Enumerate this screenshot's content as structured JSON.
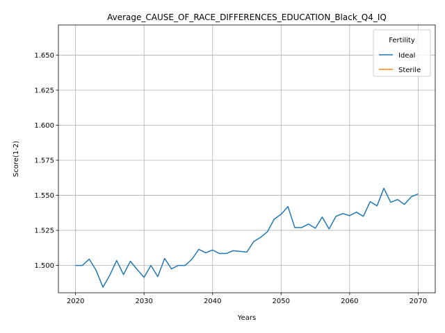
{
  "chart_data": {
    "type": "line",
    "title": "Average_CAUSE_OF_RACE_DIFFERENCES_EDUCATION_Black_Q4_IQ",
    "xlabel": "Years",
    "ylabel": "Score(1-2)",
    "xlim": [
      2017.5,
      2072.5
    ],
    "ylim": [
      1.4805,
      1.6715
    ],
    "x_ticks": [
      2020,
      2030,
      2040,
      2050,
      2060,
      2070
    ],
    "y_ticks": [
      1.5,
      1.525,
      1.55,
      1.575,
      1.6,
      1.625,
      1.65
    ],
    "y_tick_labels": [
      "1.500",
      "1.525",
      "1.550",
      "1.575",
      "1.600",
      "1.625",
      "1.650"
    ],
    "grid": true,
    "legend": {
      "title": "Fertility",
      "placement": "top-right"
    },
    "series": [
      {
        "name": "Ideal",
        "color": "#1f77b4",
        "x": [
          2020,
          2021,
          2022,
          2023,
          2024,
          2025,
          2026,
          2027,
          2028,
          2029,
          2030,
          2031,
          2032,
          2033,
          2034,
          2035,
          2036,
          2037,
          2038,
          2039,
          2040,
          2041,
          2042,
          2043,
          2044,
          2045,
          2046,
          2047,
          2048,
          2049,
          2050,
          2051,
          2052,
          2053,
          2054,
          2055,
          2056,
          2057,
          2058,
          2059,
          2060,
          2061,
          2062,
          2063,
          2064,
          2065,
          2066,
          2067,
          2068,
          2069,
          2070
        ],
        "values": [
          1.5,
          1.5,
          1.5045,
          1.4965,
          1.4845,
          1.493,
          1.5035,
          1.4935,
          1.503,
          1.497,
          1.4915,
          1.5,
          1.492,
          1.505,
          1.4975,
          1.5,
          1.5,
          1.5045,
          1.5115,
          1.509,
          1.511,
          1.5085,
          1.5085,
          1.5105,
          1.51,
          1.5095,
          1.517,
          1.52,
          1.524,
          1.533,
          1.5365,
          1.542,
          1.527,
          1.527,
          1.5295,
          1.5265,
          1.5345,
          1.526,
          1.535,
          1.537,
          1.5355,
          1.538,
          1.535,
          1.5455,
          1.5425,
          1.555,
          1.545,
          1.547,
          1.5435,
          1.549,
          1.551
        ]
      },
      {
        "name": "Sterile",
        "color": "#ff7f0e",
        "x": [],
        "values": []
      }
    ]
  }
}
